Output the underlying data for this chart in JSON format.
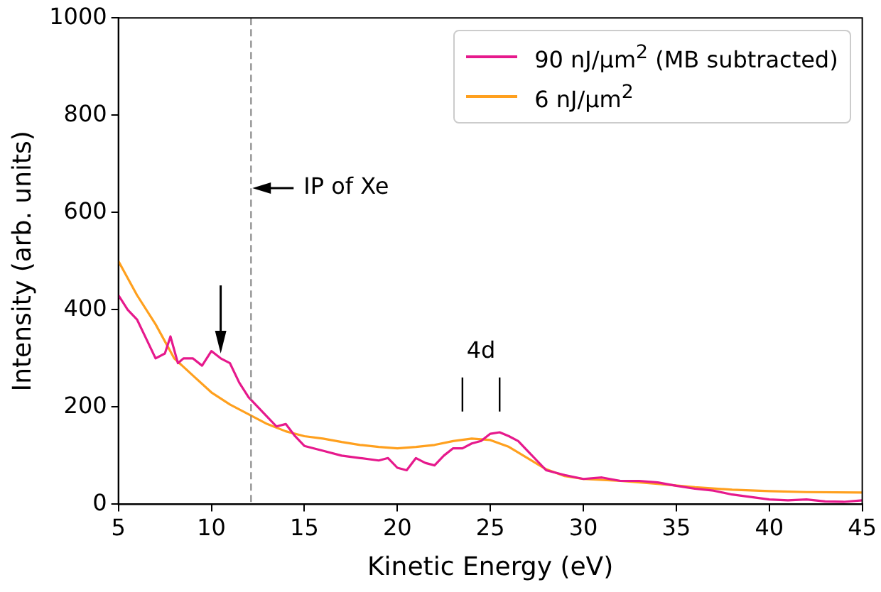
{
  "chart_data": {
    "type": "line",
    "xlabel": "Kinetic Energy (eV)",
    "ylabel": "Intensity (arb. units)",
    "xlim": [
      5,
      45
    ],
    "xticks": [
      5,
      10,
      15,
      20,
      25,
      30,
      35,
      40,
      45
    ],
    "ylim": [
      0,
      1000
    ],
    "yticks": [
      0,
      200,
      400,
      600,
      800,
      1000
    ],
    "grid": false,
    "legend": "top right",
    "marker": "none",
    "line_style": "solid",
    "series": [
      {
        "name": "90 nJ/μm$^{2}$ (MB subtracted)",
        "color": "#e6198c",
        "x": [
          5,
          5.5,
          6,
          6.5,
          7,
          7.5,
          7.8,
          8.2,
          8.5,
          9,
          9.5,
          10,
          10.5,
          11,
          11.5,
          12,
          12.5,
          13,
          13.5,
          14,
          14.5,
          15,
          16,
          17,
          18,
          19,
          19.5,
          20,
          20.5,
          21,
          21.5,
          22,
          22.5,
          23,
          23.5,
          24,
          24.5,
          25,
          25.5,
          26,
          26.5,
          27,
          27.5,
          28,
          29,
          30,
          31,
          32,
          33,
          34,
          35,
          36,
          37,
          38,
          39,
          40,
          41,
          42,
          43,
          44,
          45
        ],
        "values": [
          430,
          400,
          380,
          340,
          300,
          310,
          345,
          290,
          300,
          300,
          285,
          315,
          300,
          290,
          250,
          220,
          200,
          180,
          160,
          165,
          140,
          120,
          110,
          100,
          95,
          90,
          95,
          75,
          70,
          95,
          85,
          80,
          100,
          115,
          115,
          125,
          130,
          145,
          148,
          140,
          130,
          110,
          90,
          70,
          60,
          52,
          55,
          48,
          48,
          45,
          38,
          32,
          28,
          20,
          15,
          10,
          8,
          10,
          6,
          5,
          8
        ]
      },
      {
        "name": "6 nJ/μm$^{2}$",
        "color": "#ffa01e",
        "x": [
          5,
          6,
          7,
          8,
          9,
          10,
          11,
          12,
          13,
          14,
          15,
          16,
          17,
          18,
          19,
          20,
          21,
          22,
          23,
          24,
          25,
          26,
          27,
          28,
          29,
          30,
          32,
          34,
          36,
          38,
          40,
          42,
          45
        ],
        "values": [
          500,
          430,
          370,
          300,
          265,
          230,
          205,
          185,
          165,
          150,
          140,
          135,
          128,
          122,
          118,
          115,
          118,
          122,
          130,
          135,
          132,
          118,
          95,
          72,
          58,
          52,
          48,
          42,
          35,
          30,
          27,
          25,
          24
        ]
      }
    ],
    "ref_lines": [
      {
        "axis": "x",
        "value": 12.13,
        "label": "IP of Xe",
        "color": "#808080",
        "line_style": "dashed"
      }
    ],
    "annotations": [
      "4d"
    ]
  }
}
